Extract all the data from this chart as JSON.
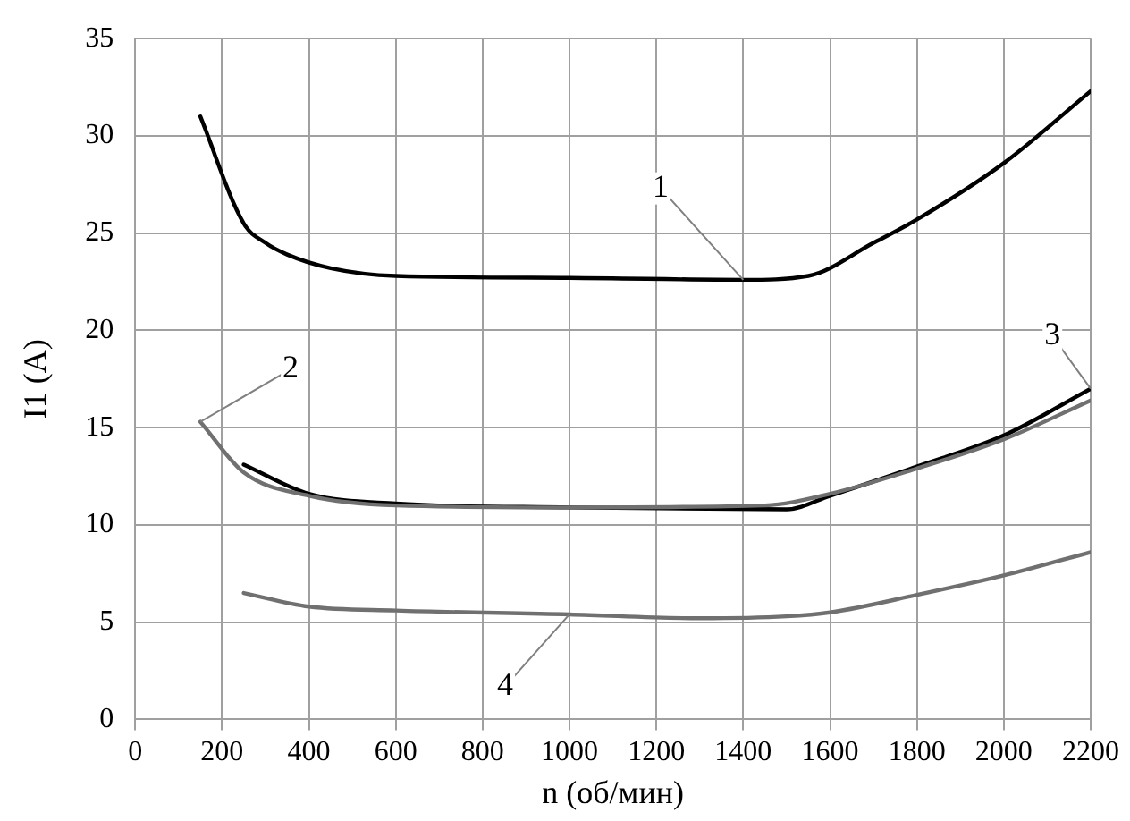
{
  "chart_data": {
    "type": "line",
    "xlabel": "n (об/мин)",
    "ylabel": "I1 (A)",
    "xlim": [
      0,
      2200
    ],
    "xticks": [
      0,
      200,
      400,
      600,
      800,
      1000,
      1200,
      1400,
      1600,
      1800,
      2000,
      2200
    ],
    "ylim": [
      0,
      35
    ],
    "yticks": [
      0,
      5,
      10,
      15,
      20,
      25,
      30,
      35
    ],
    "grid": true,
    "legend": false,
    "marker": "none",
    "line_style": "solid",
    "series": [
      {
        "color": "#000000",
        "x": [
          150,
          250,
          300,
          350,
          450,
          600,
          1000,
          1400,
          1550,
          1700,
          1800,
          2000,
          2200
        ],
        "values": [
          31,
          25.5,
          24.5,
          23.9,
          23.2,
          22.8,
          22.7,
          22.6,
          22.8,
          24.5,
          25.7,
          28.6,
          32.3
        ]
      },
      {
        "color": "#707070",
        "x": [
          150,
          250,
          400,
          600,
          1000,
          1450,
          1600,
          1800,
          2000,
          2200
        ],
        "values": [
          15.3,
          12.7,
          11.5,
          11.0,
          10.9,
          11.0,
          11.6,
          12.9,
          14.4,
          16.4
        ]
      },
      {
        "color": "#000000",
        "x": [
          250,
          400,
          600,
          1000,
          1500,
          1600,
          1800,
          2000,
          2200
        ],
        "values": [
          13.1,
          11.6,
          11.1,
          10.9,
          10.8,
          11.5,
          13.0,
          14.6,
          17.0
        ]
      },
      {
        "color": "#707070",
        "x": [
          250,
          400,
          600,
          1000,
          1300,
          1500,
          1600,
          1800,
          2000,
          2200
        ],
        "values": [
          6.5,
          5.8,
          5.6,
          5.4,
          5.2,
          5.3,
          5.5,
          6.4,
          7.4,
          8.6
        ]
      }
    ],
    "annotations": [
      {
        "text": "1",
        "x": 1210,
        "y": 27.3
      },
      {
        "text": "2",
        "x": 358,
        "y": 18
      },
      {
        "text": "3",
        "x": 2112,
        "y": 19.7
      },
      {
        "text": "4",
        "x": 852,
        "y": 1.7
      }
    ]
  }
}
